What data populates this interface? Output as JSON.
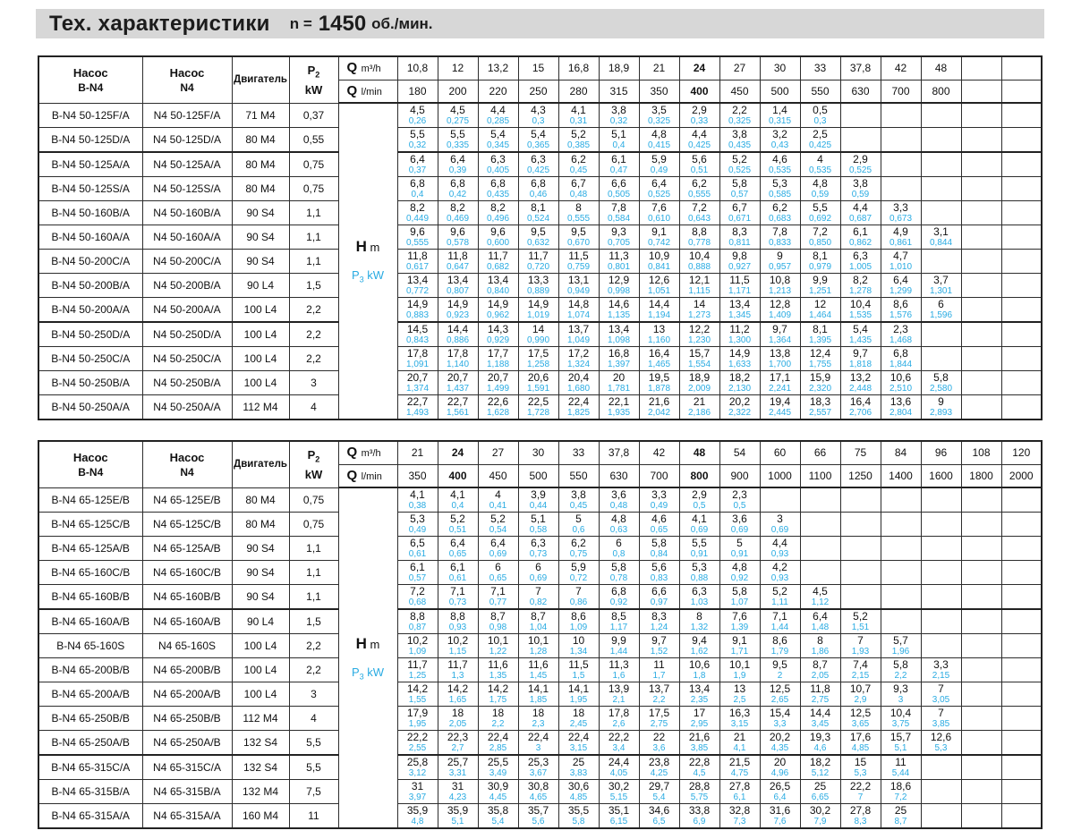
{
  "title": {
    "main": "Тех. характеристики",
    "n_label": "n =",
    "n_value": "1450",
    "rpm_unit": "об./мин."
  },
  "colors": {
    "accent_cyan": "#29abe2",
    "title_bg": "#d7d7d7"
  },
  "labels": {
    "pump_word": "Насос",
    "series_bn4": "B-N4",
    "series_n4": "N4",
    "motor": "Двигатель",
    "p_letter": "P",
    "p2_sub": "2",
    "p3_sub": "3",
    "kw_unit": "kW",
    "q_letter": "Q",
    "m3h_unit": "m³/h",
    "lmin_unit": "l/min",
    "h_letter": "H",
    "h_unit": "m"
  },
  "table1": {
    "q_m3h": [
      "10,8",
      "12",
      "13,2",
      "15",
      "16,8",
      "18,9",
      "21",
      "24",
      "27",
      "30",
      "33",
      "37,8",
      "42",
      "48",
      "",
      ""
    ],
    "q_lmin": [
      "180",
      "200",
      "220",
      "250",
      "280",
      "315",
      "350",
      "400",
      "450",
      "500",
      "550",
      "630",
      "700",
      "800",
      "",
      ""
    ],
    "bold_cols": [
      7
    ],
    "thick_after": [
      1,
      8
    ],
    "rows": [
      {
        "bn4": "B-N4 50-125F/A",
        "n4": "N4 50-125F/A",
        "motor": "71 M4",
        "p2": "0,37",
        "h": [
          "4,5",
          "4,5",
          "4,4",
          "4,3",
          "4,1",
          "3,8",
          "3,5",
          "2,9",
          "2,2",
          "1,4",
          "0,5"
        ],
        "p3": [
          "0,26",
          "0,275",
          "0,285",
          "0,3",
          "0,31",
          "0,32",
          "0,325",
          "0,33",
          "0,325",
          "0,315",
          "0,3"
        ]
      },
      {
        "bn4": "B-N4 50-125D/A",
        "n4": "N4 50-125D/A",
        "motor": "80 M4",
        "p2": "0,55",
        "h": [
          "5,5",
          "5,5",
          "5,4",
          "5,4",
          "5,2",
          "5,1",
          "4,8",
          "4,4",
          "3,8",
          "3,2",
          "2,5"
        ],
        "p3": [
          "0,32",
          "0,335",
          "0,345",
          "0,365",
          "0,385",
          "0,4",
          "0,415",
          "0,425",
          "0,435",
          "0,43",
          "0,425"
        ]
      },
      {
        "bn4": "B-N4 50-125A/A",
        "n4": "N4 50-125A/A",
        "motor": "80 M4",
        "p2": "0,75",
        "h": [
          "6,4",
          "6,4",
          "6,3",
          "6,3",
          "6,2",
          "6,1",
          "5,9",
          "5,6",
          "5,2",
          "4,6",
          "4",
          "2,9"
        ],
        "p3": [
          "0,37",
          "0,39",
          "0,405",
          "0,425",
          "0,45",
          "0,47",
          "0,49",
          "0,51",
          "0,525",
          "0,535",
          "0,535",
          "0,525"
        ]
      },
      {
        "bn4": "B-N4 50-125S/A",
        "n4": "N4 50-125S/A",
        "motor": "80 M4",
        "p2": "0,75",
        "h": [
          "6,8",
          "6,8",
          "6,8",
          "6,8",
          "6,7",
          "6,6",
          "6,4",
          "6,2",
          "5,8",
          "5,3",
          "4,8",
          "3,8"
        ],
        "p3": [
          "0,4",
          "0,42",
          "0,435",
          "0,46",
          "0,48",
          "0,505",
          "0,525",
          "0,555",
          "0,57",
          "0,585",
          "0,59",
          "0,59"
        ]
      },
      {
        "bn4": "B-N4 50-160B/A",
        "n4": "N4 50-160B/A",
        "motor": "90 S4",
        "p2": "1,1",
        "h": [
          "8,2",
          "8,2",
          "8,2",
          "8,1",
          "8",
          "7,8",
          "7,6",
          "7,2",
          "6,7",
          "6,2",
          "5,5",
          "4,4",
          "3,3"
        ],
        "p3": [
          "0,449",
          "0,469",
          "0,496",
          "0,524",
          "0,555",
          "0,584",
          "0,610",
          "0,643",
          "0,671",
          "0,683",
          "0,692",
          "0,687",
          "0,673"
        ]
      },
      {
        "bn4": "B-N4 50-160A/A",
        "n4": "N4 50-160A/A",
        "motor": "90 S4",
        "p2": "1,1",
        "h": [
          "9,6",
          "9,6",
          "9,6",
          "9,5",
          "9,5",
          "9,3",
          "9,1",
          "8,8",
          "8,3",
          "7,8",
          "7,2",
          "6,1",
          "4,9",
          "3,1"
        ],
        "p3": [
          "0,555",
          "0,578",
          "0,600",
          "0,632",
          "0,670",
          "0,705",
          "0,742",
          "0,778",
          "0,811",
          "0,833",
          "0,850",
          "0,862",
          "0,861",
          "0,844"
        ]
      },
      {
        "bn4": "B-N4 50-200C/A",
        "n4": "N4 50-200C/A",
        "motor": "90 S4",
        "p2": "1,1",
        "h": [
          "11,8",
          "11,8",
          "11,7",
          "11,7",
          "11,5",
          "11,3",
          "10,9",
          "10,4",
          "9,8",
          "9",
          "8,1",
          "6,3",
          "4,7"
        ],
        "p3": [
          "0,617",
          "0,647",
          "0,682",
          "0,720",
          "0,759",
          "0,801",
          "0,841",
          "0,888",
          "0,927",
          "0,957",
          "0,979",
          "1,005",
          "1,010"
        ]
      },
      {
        "bn4": "B-N4 50-200B/A",
        "n4": "N4 50-200B/A",
        "motor": "90 L4",
        "p2": "1,5",
        "h": [
          "13,4",
          "13,4",
          "13,4",
          "13,3",
          "13,1",
          "12,9",
          "12,6",
          "12,1",
          "11,5",
          "10,8",
          "9,9",
          "8,2",
          "6,4",
          "3,7"
        ],
        "p3": [
          "0,772",
          "0,807",
          "0,840",
          "0,889",
          "0,949",
          "0,998",
          "1,051",
          "1,115",
          "1,171",
          "1,213",
          "1,251",
          "1,278",
          "1,299",
          "1,301"
        ]
      },
      {
        "bn4": "B-N4 50-200A/A",
        "n4": "N4 50-200A/A",
        "motor": "100 L4",
        "p2": "2,2",
        "h": [
          "14,9",
          "14,9",
          "14,9",
          "14,9",
          "14,8",
          "14,6",
          "14,4",
          "14",
          "13,4",
          "12,8",
          "12",
          "10,4",
          "8,6",
          "6"
        ],
        "p3": [
          "0,883",
          "0,923",
          "0,962",
          "1,019",
          "1,074",
          "1,135",
          "1,194",
          "1,273",
          "1,345",
          "1,409",
          "1,464",
          "1,535",
          "1,576",
          "1,596"
        ]
      },
      {
        "bn4": "B-N4 50-250D/A",
        "n4": "N4 50-250D/A",
        "motor": "100 L4",
        "p2": "2,2",
        "h": [
          "14,5",
          "14,4",
          "14,3",
          "14",
          "13,7",
          "13,4",
          "13",
          "12,2",
          "11,2",
          "9,7",
          "8,1",
          "5,4",
          "2,3"
        ],
        "p3": [
          "0,843",
          "0,886",
          "0,929",
          "0,990",
          "1,049",
          "1,098",
          "1,160",
          "1,230",
          "1,300",
          "1,364",
          "1,395",
          "1,435",
          "1,468"
        ]
      },
      {
        "bn4": "B-N4 50-250C/A",
        "n4": "N4 50-250C/A",
        "motor": "100 L4",
        "p2": "2,2",
        "h": [
          "17,8",
          "17,8",
          "17,7",
          "17,5",
          "17,2",
          "16,8",
          "16,4",
          "15,7",
          "14,9",
          "13,8",
          "12,4",
          "9,7",
          "6,8"
        ],
        "p3": [
          "1,091",
          "1,140",
          "1,188",
          "1,258",
          "1,324",
          "1,397",
          "1,465",
          "1,554",
          "1,633",
          "1,700",
          "1,755",
          "1,818",
          "1,844"
        ]
      },
      {
        "bn4": "B-N4 50-250B/A",
        "n4": "N4 50-250B/A",
        "motor": "100 L4",
        "p2": "3",
        "h": [
          "20,7",
          "20,7",
          "20,7",
          "20,6",
          "20,4",
          "20",
          "19,5",
          "18,9",
          "18,2",
          "17,1",
          "15,9",
          "13,2",
          "10,6",
          "5,8"
        ],
        "p3": [
          "1,374",
          "1,437",
          "1,499",
          "1,591",
          "1,680",
          "1,781",
          "1,878",
          "2,009",
          "2,130",
          "2,241",
          "2,320",
          "2,448",
          "2,510",
          "2,580"
        ]
      },
      {
        "bn4": "B-N4 50-250A/A",
        "n4": "N4 50-250A/A",
        "motor": "112 M4",
        "p2": "4",
        "h": [
          "22,7",
          "22,7",
          "22,6",
          "22,5",
          "22,4",
          "22,1",
          "21,6",
          "21",
          "20,2",
          "19,4",
          "18,3",
          "16,4",
          "13,6",
          "9"
        ],
        "p3": [
          "1,493",
          "1,561",
          "1,628",
          "1,728",
          "1,825",
          "1,935",
          "2,042",
          "2,186",
          "2,322",
          "2,445",
          "2,557",
          "2,706",
          "2,804",
          "2,893"
        ]
      }
    ]
  },
  "table2": {
    "q_m3h": [
      "21",
      "24",
      "27",
      "30",
      "33",
      "37,8",
      "42",
      "48",
      "54",
      "60",
      "66",
      "75",
      "84",
      "96",
      "108",
      "120"
    ],
    "q_lmin": [
      "350",
      "400",
      "450",
      "500",
      "550",
      "630",
      "700",
      "800",
      "900",
      "1000",
      "1100",
      "1250",
      "1400",
      "1600",
      "1800",
      "2000"
    ],
    "bold_cols": [
      1,
      7
    ],
    "thick_after": [
      4,
      10
    ],
    "rows": [
      {
        "bn4": "B-N4 65-125E/B",
        "n4": "N4 65-125E/B",
        "motor": "80 M4",
        "p2": "0,75",
        "h": [
          "4,1",
          "4,1",
          "4",
          "3,9",
          "3,8",
          "3,6",
          "3,3",
          "2,9",
          "2,3"
        ],
        "p3": [
          "0,38",
          "0,4",
          "0,41",
          "0,44",
          "0,45",
          "0,48",
          "0,49",
          "0,5",
          "0,5"
        ]
      },
      {
        "bn4": "B-N4 65-125C/B",
        "n4": "N4 65-125C/B",
        "motor": "80 M4",
        "p2": "0,75",
        "h": [
          "5,3",
          "5,2",
          "5,2",
          "5,1",
          "5",
          "4,8",
          "4,6",
          "4,1",
          "3,6",
          "3"
        ],
        "p3": [
          "0,49",
          "0,51",
          "0,54",
          "0,58",
          "0,6",
          "0,63",
          "0,65",
          "0,69",
          "0,69",
          "0,69"
        ]
      },
      {
        "bn4": "B-N4 65-125A/B",
        "n4": "N4 65-125A/B",
        "motor": "90 S4",
        "p2": "1,1",
        "h": [
          "6,5",
          "6,4",
          "6,4",
          "6,3",
          "6,2",
          "6",
          "5,8",
          "5,5",
          "5",
          "4,4"
        ],
        "p3": [
          "0,61",
          "0,65",
          "0,69",
          "0,73",
          "0,75",
          "0,8",
          "0,84",
          "0,91",
          "0,91",
          "0,93"
        ]
      },
      {
        "bn4": "B-N4 65-160C/B",
        "n4": "N4 65-160C/B",
        "motor": "90 S4",
        "p2": "1,1",
        "h": [
          "6,1",
          "6,1",
          "6",
          "6",
          "5,9",
          "5,8",
          "5,6",
          "5,3",
          "4,8",
          "4,2"
        ],
        "p3": [
          "0,57",
          "0,61",
          "0,65",
          "0,69",
          "0,72",
          "0,78",
          "0,83",
          "0,88",
          "0,92",
          "0,93"
        ]
      },
      {
        "bn4": "B-N4 65-160B/B",
        "n4": "N4 65-160B/B",
        "motor": "90 S4",
        "p2": "1,1",
        "h": [
          "7,2",
          "7,1",
          "7,1",
          "7",
          "7",
          "6,8",
          "6,6",
          "6,3",
          "5,8",
          "5,2",
          "4,5"
        ],
        "p3": [
          "0,68",
          "0,73",
          "0,77",
          "0,82",
          "0,86",
          "0,92",
          "0,97",
          "1,03",
          "1,07",
          "1,11",
          "1,12"
        ]
      },
      {
        "bn4": "B-N4 65-160A/B",
        "n4": "N4 65-160A/B",
        "motor": "90 L4",
        "p2": "1,5",
        "h": [
          "8,8",
          "8,8",
          "8,7",
          "8,7",
          "8,6",
          "8,5",
          "8,3",
          "8",
          "7,6",
          "7,1",
          "6,4",
          "5,2"
        ],
        "p3": [
          "0,87",
          "0,93",
          "0,98",
          "1,04",
          "1,09",
          "1,17",
          "1,24",
          "1,32",
          "1,39",
          "1,44",
          "1,48",
          "1,51"
        ]
      },
      {
        "bn4": "B-N4 65-160S",
        "n4": "N4 65-160S",
        "motor": "100 L4",
        "p2": "2,2",
        "h": [
          "10,2",
          "10,2",
          "10,1",
          "10,1",
          "10",
          "9,9",
          "9,7",
          "9,4",
          "9,1",
          "8,6",
          "8",
          "7",
          "5,7"
        ],
        "p3": [
          "1,09",
          "1,15",
          "1,22",
          "1,28",
          "1,34",
          "1,44",
          "1,52",
          "1,62",
          "1,71",
          "1,79",
          "1,86",
          "1,93",
          "1,96"
        ]
      },
      {
        "bn4": "B-N4 65-200B/B",
        "n4": "N4 65-200B/B",
        "motor": "100 L4",
        "p2": "2,2",
        "h": [
          "11,7",
          "11,7",
          "11,6",
          "11,6",
          "11,5",
          "11,3",
          "11",
          "10,6",
          "10,1",
          "9,5",
          "8,7",
          "7,4",
          "5,8",
          "3,3"
        ],
        "p3": [
          "1,25",
          "1,3",
          "1,35",
          "1,45",
          "1,5",
          "1,6",
          "1,7",
          "1,8",
          "1,9",
          "2",
          "2,05",
          "2,15",
          "2,2",
          "2,15"
        ]
      },
      {
        "bn4": "B-N4 65-200A/B",
        "n4": "N4 65-200A/B",
        "motor": "100 L4",
        "p2": "3",
        "h": [
          "14,2",
          "14,2",
          "14,2",
          "14,1",
          "14,1",
          "13,9",
          "13,7",
          "13,4",
          "13",
          "12,5",
          "11,8",
          "10,7",
          "9,3",
          "7"
        ],
        "p3": [
          "1,55",
          "1,65",
          "1,75",
          "1,85",
          "1,95",
          "2,1",
          "2,2",
          "2,35",
          "2,5",
          "2,65",
          "2,75",
          "2,9",
          "3",
          "3,05"
        ]
      },
      {
        "bn4": "B-N4 65-250B/B",
        "n4": "N4 65-250B/B",
        "motor": "112 M4",
        "p2": "4",
        "h": [
          "17,9",
          "18",
          "18",
          "18",
          "18",
          "17,8",
          "17,5",
          "17",
          "16,3",
          "15,4",
          "14,4",
          "12,5",
          "10,4",
          "7"
        ],
        "p3": [
          "1,95",
          "2,05",
          "2,2",
          "2,3",
          "2,45",
          "2,6",
          "2,75",
          "2,95",
          "3,15",
          "3,3",
          "3,45",
          "3,65",
          "3,75",
          "3,85"
        ]
      },
      {
        "bn4": "B-N4 65-250A/B",
        "n4": "N4 65-250A/B",
        "motor": "132 S4",
        "p2": "5,5",
        "h": [
          "22,2",
          "22,3",
          "22,4",
          "22,4",
          "22,4",
          "22,2",
          "22",
          "21,6",
          "21",
          "20,2",
          "19,3",
          "17,6",
          "15,7",
          "12,6"
        ],
        "p3": [
          "2,55",
          "2,7",
          "2,85",
          "3",
          "3,15",
          "3,4",
          "3,6",
          "3,85",
          "4,1",
          "4,35",
          "4,6",
          "4,85",
          "5,1",
          "5,3"
        ]
      },
      {
        "bn4": "B-N4 65-315C/A",
        "n4": "N4 65-315C/A",
        "motor": "132 S4",
        "p2": "5,5",
        "h": [
          "25,8",
          "25,7",
          "25,5",
          "25,3",
          "25",
          "24,4",
          "23,8",
          "22,8",
          "21,5",
          "20",
          "18,2",
          "15",
          "11"
        ],
        "p3": [
          "3,12",
          "3,31",
          "3,49",
          "3,67",
          "3,83",
          "4,05",
          "4,25",
          "4,5",
          "4,75",
          "4,96",
          "5,12",
          "5,3",
          "5,44"
        ]
      },
      {
        "bn4": "B-N4 65-315B/A",
        "n4": "N4 65-315B/A",
        "motor": "132 M4",
        "p2": "7,5",
        "h": [
          "31",
          "31",
          "30,9",
          "30,8",
          "30,6",
          "30,2",
          "29,7",
          "28,8",
          "27,8",
          "26,5",
          "25",
          "22,2",
          "18,6"
        ],
        "p3": [
          "3,97",
          "4,23",
          "4,45",
          "4,65",
          "4,85",
          "5,15",
          "5,4",
          "5,75",
          "6,1",
          "6,4",
          "6,65",
          "7",
          "7,2"
        ]
      },
      {
        "bn4": "B-N4 65-315A/A",
        "n4": "N4 65-315A/A",
        "motor": "160 M4",
        "p2": "11",
        "h": [
          "35,9",
          "35,9",
          "35,8",
          "35,7",
          "35,5",
          "35,1",
          "34,6",
          "33,8",
          "32,8",
          "31,6",
          "30,2",
          "27,8",
          "25"
        ],
        "p3": [
          "4,8",
          "5,1",
          "5,4",
          "5,6",
          "5,8",
          "6,15",
          "6,5",
          "6,9",
          "7,3",
          "7,6",
          "7,9",
          "8,3",
          "8,7"
        ]
      }
    ]
  }
}
